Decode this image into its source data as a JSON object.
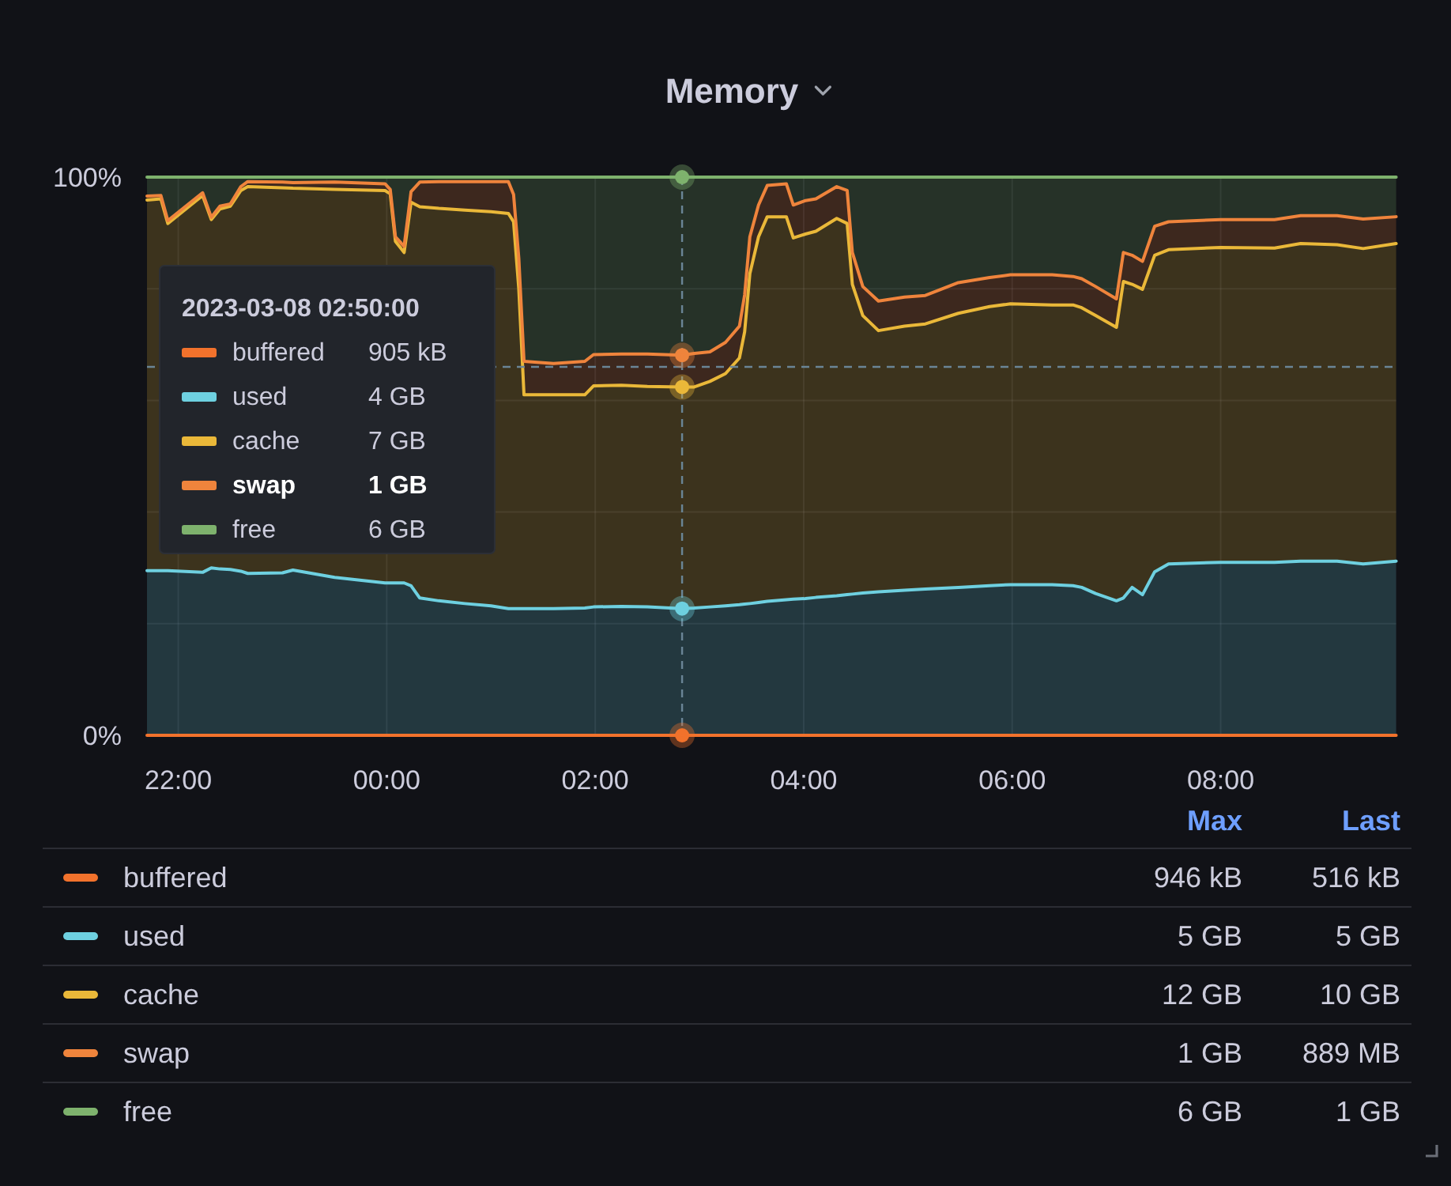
{
  "chart_data": {
    "type": "area",
    "title": "Memory",
    "stacked": true,
    "grid": true,
    "legend": "bottom",
    "x": [
      "2023-03-07T21:42",
      "2023-03-07T21:50",
      "2023-03-07T21:54",
      "2023-03-07T22:14",
      "2023-03-07T22:19",
      "2023-03-07T22:24",
      "2023-03-07T22:30",
      "2023-03-07T22:36",
      "2023-03-07T22:40",
      "2023-03-07T23:00",
      "2023-03-07T23:06",
      "2023-03-07T23:30",
      "2023-03-07T23:59",
      "2023-03-08T00:02",
      "2023-03-08T00:05",
      "2023-03-08T00:10",
      "2023-03-08T00:14",
      "2023-03-08T00:19",
      "2023-03-08T00:30",
      "2023-03-08T00:45",
      "2023-03-08T01:00",
      "2023-03-08T01:10",
      "2023-03-08T01:13",
      "2023-03-08T01:16",
      "2023-03-08T01:19",
      "2023-03-08T01:36",
      "2023-03-08T01:54",
      "2023-03-08T01:59",
      "2023-03-08T02:15",
      "2023-03-08T02:30",
      "2023-03-08T02:50",
      "2023-03-08T02:57",
      "2023-03-08T03:06",
      "2023-03-08T03:15",
      "2023-03-08T03:23",
      "2023-03-08T03:26",
      "2023-03-08T03:29",
      "2023-03-08T03:34",
      "2023-03-08T03:39",
      "2023-03-08T03:50",
      "2023-03-08T03:54",
      "2023-03-08T04:01",
      "2023-03-08T04:07",
      "2023-03-08T04:19",
      "2023-03-08T04:25",
      "2023-03-08T04:28",
      "2023-03-08T04:34",
      "2023-03-08T04:43",
      "2023-03-08T04:58",
      "2023-03-08T05:10",
      "2023-03-08T05:29",
      "2023-03-08T05:47",
      "2023-03-08T05:59",
      "2023-03-08T06:23",
      "2023-03-08T06:35",
      "2023-03-08T06:40",
      "2023-03-08T06:48",
      "2023-03-08T07:00",
      "2023-03-08T07:04",
      "2023-03-08T07:09",
      "2023-03-08T07:15",
      "2023-03-08T07:22",
      "2023-03-08T07:30",
      "2023-03-08T08:00",
      "2023-03-08T08:31",
      "2023-03-08T08:46",
      "2023-03-08T09:07",
      "2023-03-08T09:22",
      "2023-03-08T09:41"
    ],
    "xlim": [
      "2023-03-07T21:42",
      "2023-03-08T09:41"
    ],
    "xticks": [
      {
        "value": "2023-03-07T22:00",
        "label": "22:00"
      },
      {
        "value": "2023-03-08T00:00",
        "label": "00:00"
      },
      {
        "value": "2023-03-08T02:00",
        "label": "02:00"
      },
      {
        "value": "2023-03-08T04:00",
        "label": "04:00"
      },
      {
        "value": "2023-03-08T06:00",
        "label": "06:00"
      },
      {
        "value": "2023-03-08T08:00",
        "label": "08:00"
      }
    ],
    "ylim": [
      0,
      100
    ],
    "yticks": [
      {
        "value": 0,
        "label": "0%"
      },
      {
        "value": 20,
        "label": null
      },
      {
        "value": 40,
        "label": null
      },
      {
        "value": 60,
        "label": null
      },
      {
        "value": 80,
        "label": null
      },
      {
        "value": 100,
        "label": "100%"
      }
    ],
    "series": [
      {
        "name": "buffered",
        "type": "line",
        "color": "#f2722c",
        "values": [
          0,
          0,
          0,
          0,
          0,
          0,
          0,
          0,
          0,
          0,
          0,
          0,
          0,
          0,
          0,
          0,
          0,
          0,
          0,
          0,
          0,
          0,
          0,
          0,
          0,
          0,
          0,
          0,
          0,
          0,
          0,
          0,
          0,
          0,
          0,
          0,
          0,
          0,
          0,
          0,
          0,
          0,
          0,
          0,
          0,
          0,
          0,
          0,
          0,
          0,
          0,
          0,
          0,
          0,
          0,
          0,
          0,
          0,
          0,
          0,
          0,
          0,
          0,
          0,
          0,
          0,
          0,
          0,
          0
        ]
      },
      {
        "name": "used",
        "color": "#6ed0e0",
        "values": [
          29.5,
          29.5,
          29.5,
          29.2,
          30.0,
          29.8,
          29.7,
          29.4,
          29.0,
          29.1,
          29.6,
          28.3,
          27.3,
          27.3,
          27.3,
          27.3,
          26.8,
          24.6,
          24.1,
          23.6,
          23.2,
          22.7,
          22.7,
          22.7,
          22.7,
          22.7,
          22.8,
          23.0,
          23.1,
          23.0,
          22.7,
          22.8,
          23.0,
          23.2,
          23.4,
          23.5,
          23.6,
          23.8,
          24.0,
          24.3,
          24.4,
          24.5,
          24.7,
          25.0,
          25.2,
          25.3,
          25.5,
          25.7,
          26.0,
          26.2,
          26.5,
          26.8,
          27.0,
          27.0,
          26.8,
          26.5,
          25.4,
          24.1,
          24.6,
          26.5,
          25.2,
          29.3,
          30.7,
          31.0,
          31.0,
          31.2,
          31.2,
          30.7,
          31.2
        ]
      },
      {
        "name": "cache",
        "color": "#eab839",
        "values": [
          66.4,
          66.6,
          62.2,
          67.5,
          62.4,
          64.5,
          65.1,
          68.2,
          69.3,
          69.0,
          68.4,
          69.5,
          70.3,
          69.7,
          61.2,
          59.2,
          68.7,
          70.1,
          70.3,
          70.5,
          70.6,
          70.8,
          69.3,
          57.3,
          38.3,
          38.3,
          38.2,
          39.6,
          39.6,
          39.5,
          39.7,
          39.6,
          40.4,
          41.6,
          44.2,
          48.8,
          59.1,
          65.5,
          68.9,
          68.6,
          64.7,
          65.3,
          65.6,
          67.6,
          66.5,
          55.5,
          49.7,
          46.8,
          47.3,
          47.5,
          49.1,
          50.0,
          50.3,
          50.1,
          50.3,
          50.1,
          49.8,
          49.0,
          56.7,
          54.3,
          54.7,
          56.7,
          56.3,
          56.4,
          56.3,
          56.9,
          56.7,
          56.5,
          56.9
        ]
      },
      {
        "name": "swap",
        "color": "#ef843c",
        "values": [
          0.7,
          0.6,
          0.5,
          0.5,
          0.4,
          0.5,
          0.4,
          0.7,
          0.9,
          1.0,
          1.0,
          1.3,
          1.2,
          0.8,
          0.8,
          1.1,
          1.9,
          4.4,
          4.8,
          5.1,
          5.4,
          5.7,
          4.9,
          5.5,
          6.0,
          5.6,
          6.0,
          5.6,
          5.6,
          5.8,
          5.7,
          6.0,
          5.3,
          5.6,
          5.7,
          6.6,
          6.6,
          5.7,
          5.6,
          5.9,
          5.9,
          6.0,
          5.8,
          5.7,
          5.9,
          5.7,
          5.2,
          5.3,
          5.2,
          5.1,
          5.5,
          5.2,
          5.2,
          5.4,
          5.1,
          5.2,
          5.2,
          5.1,
          5.2,
          5.2,
          5.0,
          5.2,
          5.0,
          5.0,
          5.1,
          5.0,
          5.2,
          5.3,
          4.8
        ]
      },
      {
        "name": "free",
        "color": "#7eb26d",
        "values": [
          3.4,
          3.3,
          7.8,
          2.8,
          7.2,
          5.2,
          4.8,
          1.7,
          0.8,
          0.9,
          1.0,
          0.9,
          1.2,
          2.2,
          10.7,
          12.4,
          2.6,
          0.9,
          0.8,
          0.8,
          0.8,
          0.8,
          3.1,
          14.5,
          33.0,
          33.4,
          33.0,
          31.8,
          31.7,
          31.7,
          31.9,
          31.6,
          31.3,
          29.6,
          26.7,
          21.1,
          10.7,
          5.0,
          1.5,
          1.2,
          5.0,
          4.2,
          3.9,
          1.7,
          2.4,
          13.5,
          19.6,
          22.2,
          21.5,
          21.2,
          18.9,
          18.0,
          17.5,
          17.5,
          17.8,
          18.2,
          19.6,
          21.8,
          13.5,
          14.0,
          15.1,
          8.8,
          8.0,
          7.6,
          7.6,
          6.9,
          6.9,
          7.5,
          7.1
        ]
      }
    ],
    "ref_lines": [
      {
        "axis": "x",
        "value": "2023-03-08T02:50",
        "line_style": "dashed",
        "color": "#6a8596"
      },
      {
        "axis": "y",
        "value": 66,
        "line_style": "dashed",
        "color": "#6a8596"
      }
    ],
    "annotations": [
      "2023-03-08 02:50:00",
      "905 kB",
      "4 GB",
      "7 GB",
      "1 GB",
      "6 GB",
      "Max",
      "Last",
      "946 kB",
      "5 GB",
      "12 GB",
      "1 GB",
      "6 GB",
      "516 kB",
      "5 GB",
      "10 GB",
      "889 MB",
      "1 GB"
    ]
  }
}
